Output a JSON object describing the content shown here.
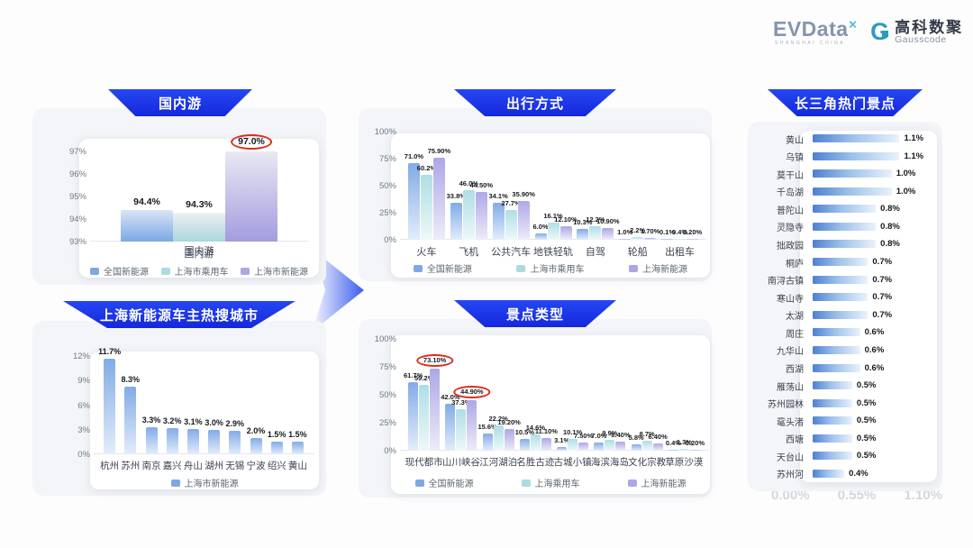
{
  "logo": {
    "evdata_text": "EVData",
    "evdata_sup": "✕",
    "evdata_sub": "SHANGHAI CHINA",
    "gauss_mark": "G",
    "gauss_cn": "高科数聚",
    "gauss_en": "Gausscode"
  },
  "ghost_axis": {
    "t0": "0.00%",
    "t1": "0.55%",
    "t2": "1.10%"
  },
  "colors": {
    "banner_blue": "#1b2fe2",
    "series_national_blue": "#7da8e4",
    "series_passenger_cyan": "#abdbe2",
    "series_ev_purple": "#aca5e6",
    "highlight_circle_red": "#dd2c1c",
    "hbar_gradient_start": "#4d80d2",
    "hbar_gradient_end": "#e9f2fc"
  },
  "chart_data": [
    {
      "id": "domestic-travel",
      "type": "bar",
      "title": "国内游",
      "xlabel": "国内游",
      "categories": [
        "国内游"
      ],
      "series": [
        {
          "name": "全国新能源",
          "values": [
            94.4
          ],
          "labels": [
            "94.4%"
          ]
        },
        {
          "name": "上海市乘用车",
          "values": [
            94.3
          ],
          "labels": [
            "94.3%"
          ]
        },
        {
          "name": "上海市新能源",
          "values": [
            97.0
          ],
          "labels": [
            "97.0%"
          ],
          "circled": [
            0
          ]
        }
      ],
      "ylim": [
        93,
        97.5
      ],
      "yticks": [
        "93%",
        "94%",
        "95%",
        "96%",
        "97%"
      ],
      "ytick_vals": [
        93,
        94,
        95,
        96,
        97
      ],
      "legend_position": "bottom",
      "grid": false
    },
    {
      "id": "shanghai-ev-hot-cities",
      "type": "bar",
      "title": "上海新能源车主热搜城市",
      "categories": [
        "杭州",
        "苏州",
        "南京",
        "嘉兴",
        "舟山",
        "湖州",
        "无锡",
        "宁波",
        "绍兴",
        "黄山"
      ],
      "series": [
        {
          "name": "上海市新能源",
          "values": [
            11.7,
            8.3,
            3.3,
            3.2,
            3.1,
            3.0,
            2.9,
            2.0,
            1.5,
            1.5
          ],
          "labels": [
            "11.7%",
            "8.3%",
            "3.3%",
            "3.2%",
            "3.1%",
            "3.0%",
            "2.9%",
            "2.0%",
            "1.5%",
            "1.5%"
          ]
        }
      ],
      "ylim": [
        0,
        13
      ],
      "yticks": [
        "0%",
        "3%",
        "6%",
        "9%",
        "12%"
      ],
      "ytick_vals": [
        0,
        3,
        6,
        9,
        12
      ],
      "legend_position": "bottom",
      "grid": false
    },
    {
      "id": "travel-modes",
      "type": "bar",
      "title": "出行方式",
      "categories": [
        "火车",
        "飞机",
        "公共汽车",
        "地铁轻轨",
        "自驾",
        "轮船",
        "出租车"
      ],
      "series": [
        {
          "name": "全国新能源",
          "values": [
            71.0,
            33.8,
            34.1,
            6.0,
            10.3,
            1.0,
            0.1
          ],
          "labels": [
            "71.0%",
            "33.8%",
            "34.1%",
            "6.0%",
            "10.3%",
            "1.0%",
            "0.1%"
          ]
        },
        {
          "name": "上海市乘用车",
          "values": [
            60.2,
            46.0,
            27.7,
            16.1,
            12.2,
            2.2,
            0.4
          ],
          "labels": [
            "60.2%",
            "46.0%",
            "27.7%",
            "16.1%",
            "12.2%",
            "2.2%",
            "0.4%"
          ]
        },
        {
          "name": "上海新能源",
          "values": [
            75.9,
            44.5,
            35.9,
            12.1,
            10.9,
            1.7,
            0.2
          ],
          "labels": [
            "75.90%",
            "44.50%",
            "35.90%",
            "12.10%",
            "10.90%",
            "1.70%",
            "0.20%"
          ]
        }
      ],
      "ylim": [
        0,
        100
      ],
      "yticks": [
        "0%",
        "25%",
        "50%",
        "75%",
        "100%"
      ],
      "ytick_vals": [
        0,
        25,
        50,
        75,
        100
      ],
      "legend_position": "bottom",
      "grid": false
    },
    {
      "id": "attraction-types",
      "type": "bar",
      "title": "景点类型",
      "categories": [
        "现代都市",
        "山川峡谷",
        "江河湖泊",
        "名胜古迹",
        "古城小镇",
        "海滨海岛",
        "文化宗教",
        "草原沙漠"
      ],
      "series": [
        {
          "name": "全国新能源",
          "values": [
            61.7,
            42.0,
            15.6,
            10.5,
            3.1,
            7.0,
            5.8,
            0.4
          ],
          "labels": [
            "61.7%",
            "42.0%",
            "15.6%",
            "10.5%",
            "3.1%",
            "7.0%",
            "5.8%",
            "0.4%"
          ]
        },
        {
          "name": "上海乘用车",
          "values": [
            59.2,
            37.3,
            22.2,
            14.6,
            10.1,
            9.9,
            8.7,
            1.3
          ],
          "labels": [
            "59.2%",
            "37.3%",
            "22.2%",
            "14.6%",
            "10.1%",
            "9.9%",
            "8.7%",
            "1.3%"
          ]
        },
        {
          "name": "上海新能源",
          "values": [
            73.1,
            44.9,
            19.2,
            11.1,
            7.5,
            8.4,
            6.4,
            0.2
          ],
          "labels": [
            "73.10%",
            "44.90%",
            "19.20%",
            "11.10%",
            "7.50%",
            "8.40%",
            "6.40%",
            "0.20%"
          ],
          "circled": [
            0,
            1
          ]
        }
      ],
      "ylim": [
        0,
        100
      ],
      "yticks": [
        "0%",
        "25%",
        "50%",
        "75%",
        "100%"
      ],
      "ytick_vals": [
        0,
        25,
        50,
        75,
        100
      ],
      "legend_position": "bottom",
      "grid": false
    },
    {
      "id": "yangtze-delta-hot-spots",
      "type": "bar",
      "orientation": "horizontal",
      "title": "长三角热门景点",
      "categories": [
        "黄山",
        "乌镇",
        "莫干山",
        "千岛湖",
        "普陀山",
        "灵隐寺",
        "拙政园",
        "桐庐",
        "南浔古镇",
        "寒山寺",
        "太湖",
        "周庄",
        "九华山",
        "西湖",
        "雁荡山",
        "苏州园林",
        "鼋头渚",
        "西塘",
        "天台山",
        "苏州河"
      ],
      "values": [
        1.1,
        1.1,
        1.0,
        1.0,
        0.8,
        0.8,
        0.8,
        0.7,
        0.7,
        0.7,
        0.7,
        0.6,
        0.6,
        0.6,
        0.5,
        0.5,
        0.5,
        0.5,
        0.5,
        0.4
      ],
      "labels": [
        "1.1%",
        "1.1%",
        "1.0%",
        "1.0%",
        "0.8%",
        "0.8%",
        "0.8%",
        "0.7%",
        "0.7%",
        "0.7%",
        "0.7%",
        "0.6%",
        "0.6%",
        "0.6%",
        "0.5%",
        "0.5%",
        "0.5%",
        "0.5%",
        "0.5%",
        "0.4%"
      ],
      "xlim": [
        0,
        1.1
      ],
      "xticks": [
        "0.00%",
        "0.55%",
        "1.10%"
      ],
      "grid": false
    }
  ]
}
